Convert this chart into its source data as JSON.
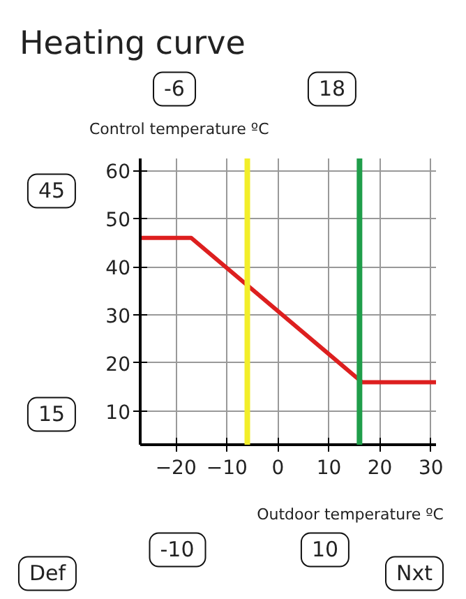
{
  "chart_data": {
    "type": "line",
    "title": "Heating curve",
    "xlabel": "Outdoor temperature ºC",
    "ylabel": "Control temperature ºC",
    "x": [
      -27,
      -17,
      16.5,
      31
    ],
    "series": [
      {
        "color": "#dd1f1f",
        "values": [
          46,
          46,
          16,
          16
        ]
      }
    ],
    "xlim": [
      -27,
      31
    ],
    "ylim": [
      3,
      62.5
    ],
    "xticks": [
      -20,
      -10,
      0,
      10,
      20,
      30
    ],
    "yticks": [
      10,
      20,
      30,
      40,
      50,
      60
    ],
    "grid": true,
    "ref_lines": [
      {
        "axis": "x",
        "value": -6,
        "color": "#f2ee2a"
      },
      {
        "axis": "x",
        "value": 16,
        "color": "#1f9e4a"
      }
    ],
    "annotations": [
      "-6",
      "18",
      "45",
      "15",
      "-10",
      "10",
      "Def",
      "Nxt"
    ]
  }
}
